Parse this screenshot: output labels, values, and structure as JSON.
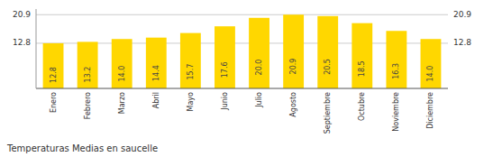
{
  "chart_data": {
    "type": "bar",
    "title": "Temperaturas Medias en saucelle",
    "categories": [
      "Enero",
      "Febrero",
      "Marzo",
      "Abril",
      "Mayo",
      "Junio",
      "Julio",
      "Agosto",
      "Septiembre",
      "Octubre",
      "Noviembre",
      "Diciembre"
    ],
    "values": [
      12.8,
      13.2,
      14.0,
      14.4,
      15.7,
      17.6,
      20.0,
      20.9,
      20.5,
      18.5,
      16.3,
      14.0
    ],
    "value_labels": [
      "12.8",
      "13.2",
      "14.0",
      "14.4",
      "15.7",
      "17.6",
      "20.0",
      "20.9",
      "20.5",
      "18.5",
      "16.3",
      "14.0"
    ],
    "data_labels": true,
    "color": "#FFD700",
    "ylim": [
      0,
      22.5
    ],
    "yticks": [
      12.8,
      20.9
    ],
    "y2lim": [
      0,
      22.5
    ],
    "y2ticks": [
      12.8,
      20.9
    ],
    "grid": true
  }
}
